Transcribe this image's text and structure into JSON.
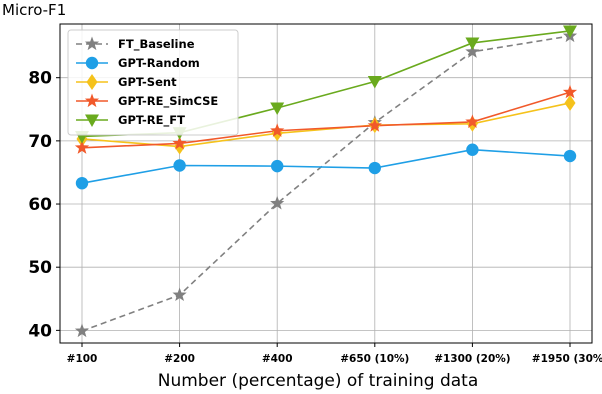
{
  "chart_data": {
    "type": "line",
    "title": "",
    "ylabel": "Micro-F1",
    "xlabel": "Number (percentage) of training data",
    "categories": [
      "#100",
      "#200",
      "#400",
      "#650 (10%)",
      "#1300 (20%)",
      "#1950 (30%)"
    ],
    "ylim": [
      38,
      88.5
    ],
    "yticks": [
      40,
      50,
      60,
      70,
      80
    ],
    "grid": true,
    "legend_position": "top-left",
    "series": [
      {
        "name": "FT_Baseline",
        "values": [
          39.9,
          45.6,
          60.1,
          72.9,
          84.1,
          86.6
        ],
        "color": "#808080",
        "marker": "star",
        "dashed": true
      },
      {
        "name": "GPT-Random",
        "values": [
          63.3,
          66.1,
          66.0,
          65.7,
          68.6,
          67.6
        ],
        "color": "#1f9fe6",
        "marker": "circle",
        "dashed": false
      },
      {
        "name": "GPT-Sent",
        "values": [
          70.3,
          69.1,
          71.2,
          72.5,
          72.7,
          76.0
        ],
        "color": "#f5c21b",
        "marker": "diamond",
        "dashed": false
      },
      {
        "name": "GPT-RE_SimCSE",
        "values": [
          68.9,
          69.6,
          71.6,
          72.4,
          73.0,
          77.7
        ],
        "color": "#f1592a",
        "marker": "star",
        "dashed": false
      },
      {
        "name": "GPT-RE_FT",
        "values": [
          70.7,
          71.3,
          75.2,
          79.4,
          85.5,
          87.4
        ],
        "color": "#6aaa1e",
        "marker": "triangle-down",
        "dashed": false
      }
    ]
  }
}
